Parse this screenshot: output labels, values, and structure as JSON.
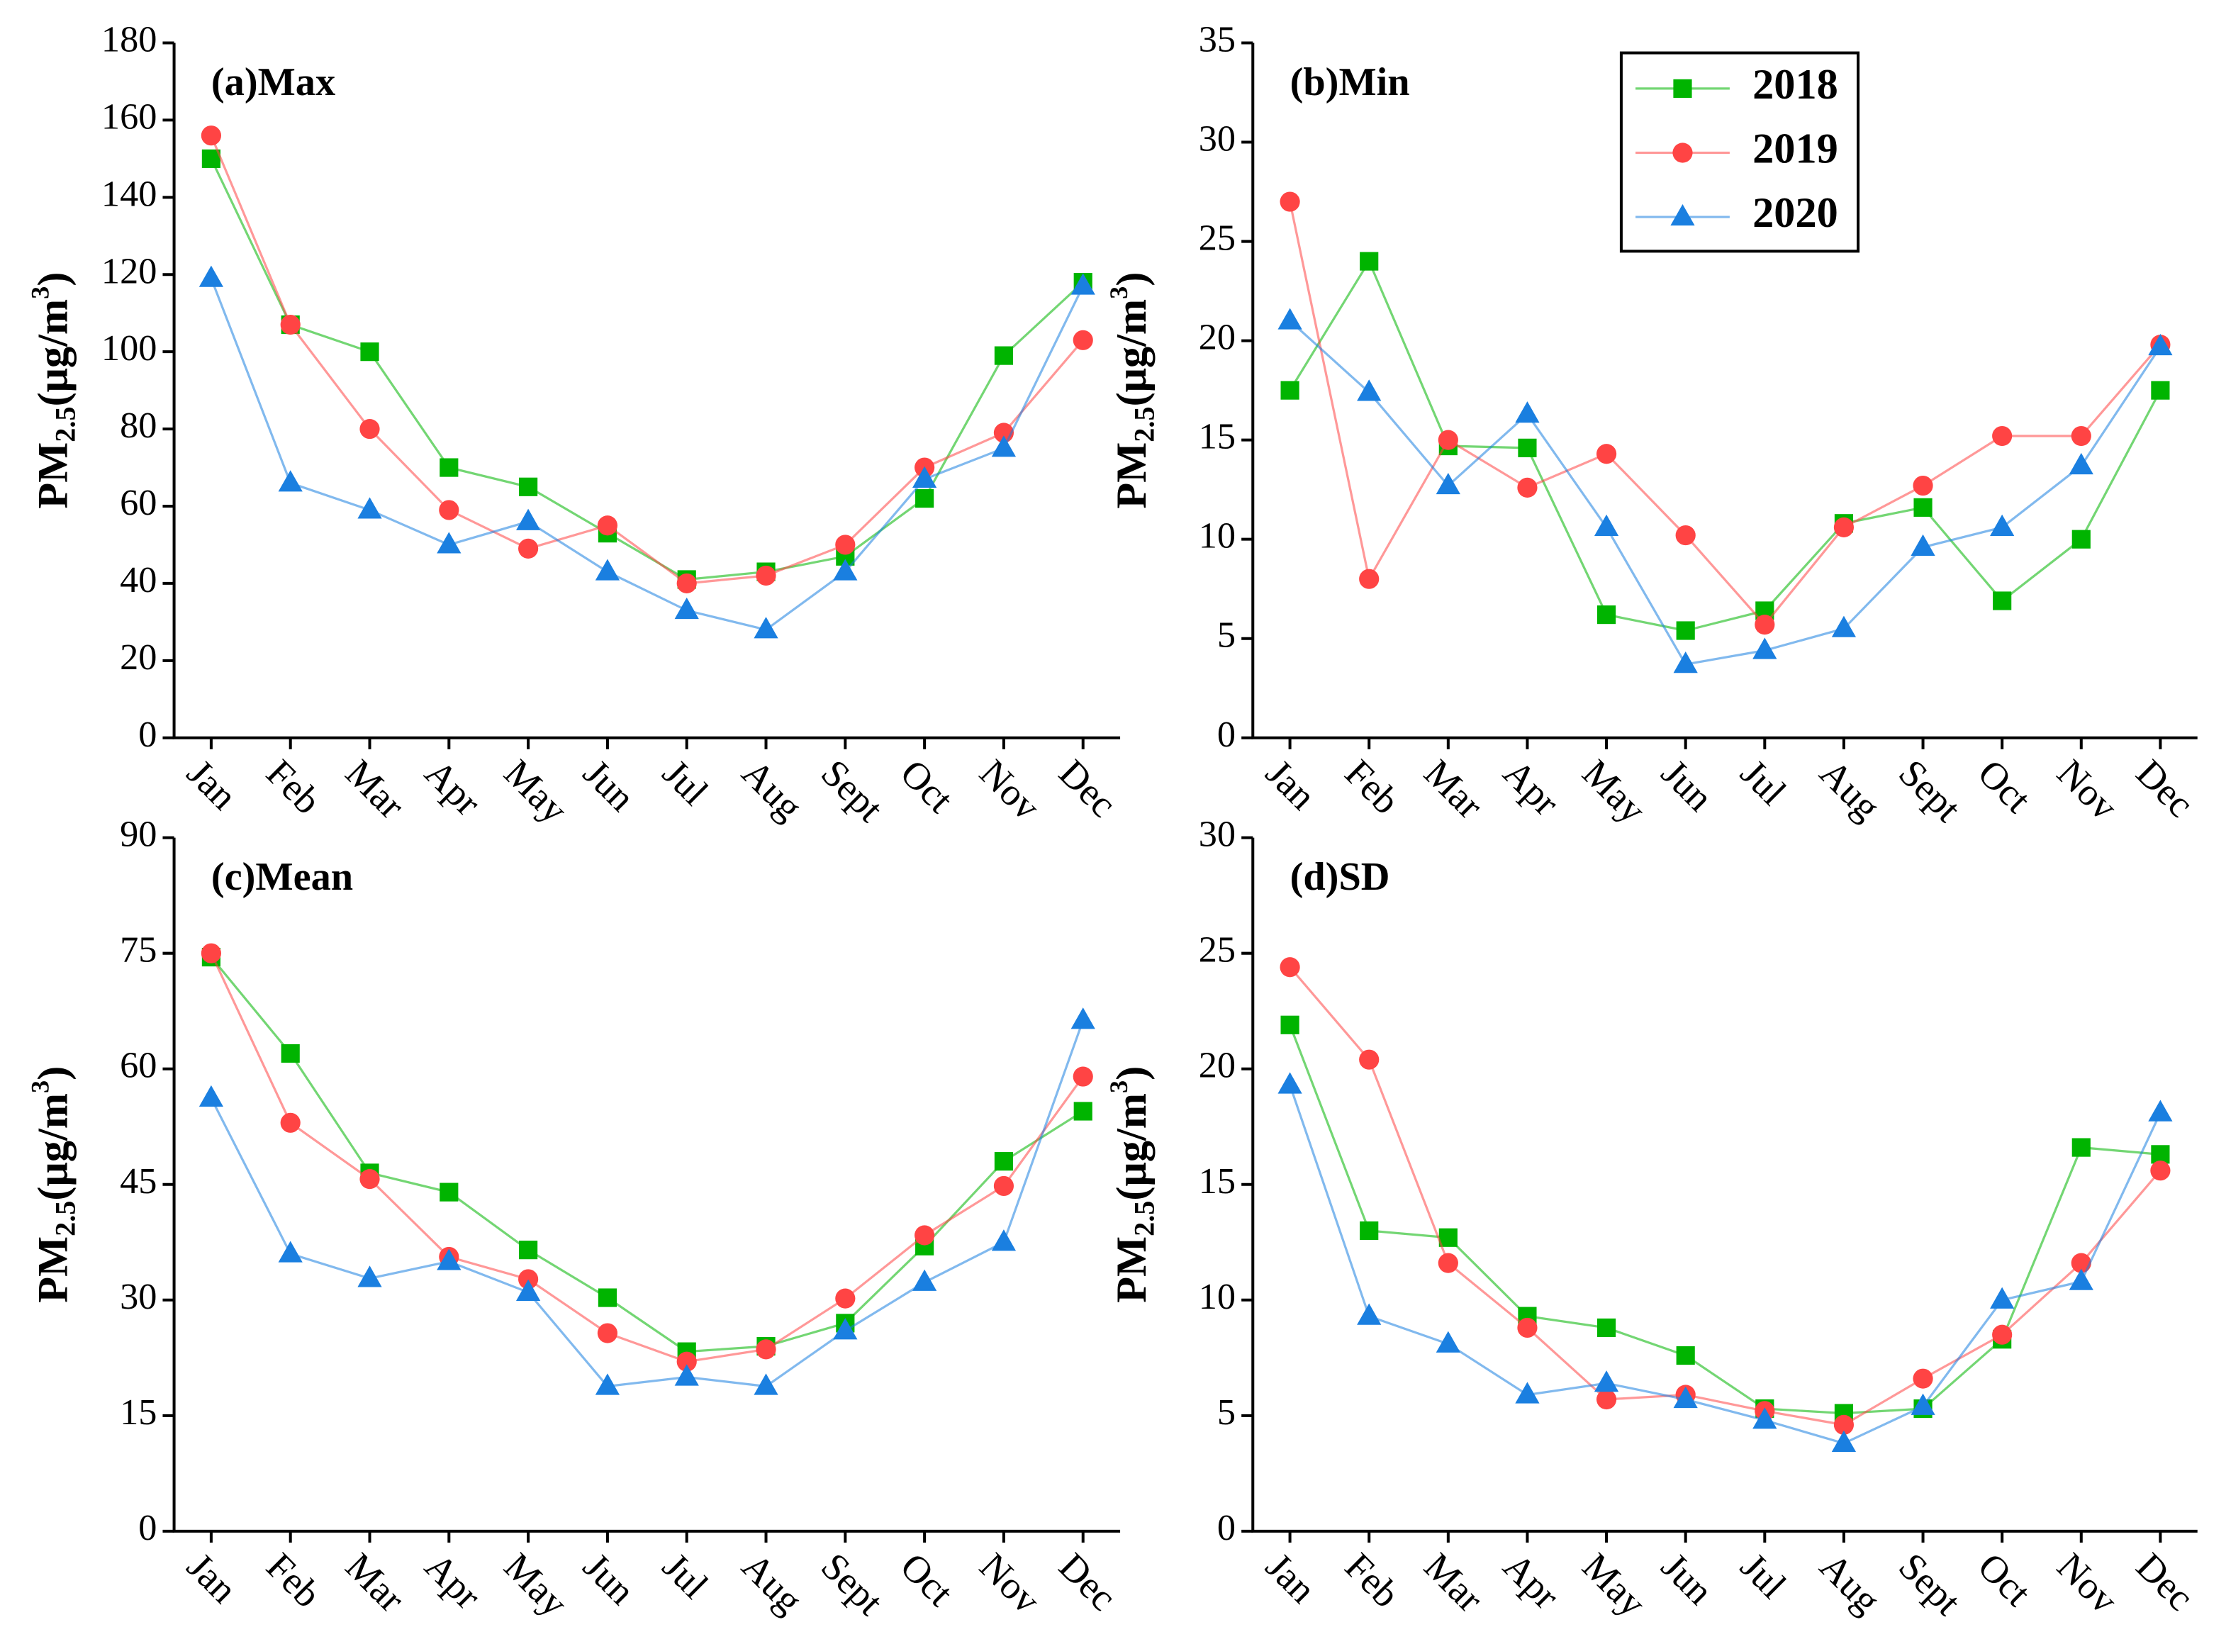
{
  "chart_data": [
    {
      "type": "line",
      "title": "(a)Max",
      "ylabel": [
        "PM",
        "2.5",
        "(μg/m",
        "3",
        ")"
      ],
      "categories": [
        "Jan",
        "Feb",
        "Mar",
        "Apr",
        "May",
        "Jun",
        "Jul",
        "Aug",
        "Sept",
        "Oct",
        "Nov",
        "Dec"
      ],
      "series": [
        {
          "name": "2018",
          "color": "#00b400",
          "marker": "square",
          "values": [
            150,
            107,
            100,
            70,
            65,
            53,
            41,
            43,
            47,
            62,
            99,
            118
          ]
        },
        {
          "name": "2019",
          "color": "#ff4444",
          "marker": "circle",
          "values": [
            156,
            107,
            80,
            59,
            49,
            55,
            40,
            42,
            50,
            70,
            79,
            103
          ]
        },
        {
          "name": "2020",
          "color": "#1a7fe0",
          "marker": "triangle",
          "values": [
            119,
            66,
            59,
            50,
            56,
            43,
            33,
            28,
            43,
            67,
            75,
            117
          ]
        }
      ],
      "ylim": [
        0,
        180
      ],
      "yticks": [
        0,
        20,
        40,
        60,
        80,
        100,
        120,
        140,
        160,
        180
      ]
    },
    {
      "type": "line",
      "title": "(b)Min",
      "ylabel": [
        "PM",
        "2.5",
        "(μg/m",
        "3",
        ")"
      ],
      "categories": [
        "Jan",
        "Feb",
        "Mar",
        "Apr",
        "May",
        "Jun",
        "Jul",
        "Aug",
        "Sept",
        "Oct",
        "Nov",
        "Dec"
      ],
      "series": [
        {
          "name": "2018",
          "color": "#00b400",
          "marker": "square",
          "values": [
            17.5,
            24,
            14.7,
            14.6,
            6.2,
            5.4,
            6.4,
            10.8,
            11.6,
            6.9,
            10,
            17.5
          ]
        },
        {
          "name": "2019",
          "color": "#ff4444",
          "marker": "circle",
          "values": [
            27,
            8,
            15,
            12.6,
            14.3,
            10.2,
            5.7,
            10.6,
            12.7,
            15.2,
            15.2,
            19.8
          ]
        },
        {
          "name": "2020",
          "color": "#1a7fe0",
          "marker": "triangle",
          "values": [
            21,
            17.4,
            12.7,
            16.3,
            10.6,
            3.7,
            4.4,
            5.5,
            9.6,
            10.6,
            13.7,
            19.7
          ]
        }
      ],
      "ylim": [
        0,
        35
      ],
      "yticks": [
        0,
        5,
        10,
        15,
        20,
        25,
        30,
        35
      ],
      "legend": "upper center"
    },
    {
      "type": "line",
      "title": "(c)Mean",
      "ylabel": [
        "PM",
        "2.5",
        "(μg/m",
        "3",
        ")"
      ],
      "categories": [
        "Jan",
        "Feb",
        "Mar",
        "Apr",
        "May",
        "Jun",
        "Jul",
        "Aug",
        "Sept",
        "Oct",
        "Nov",
        "Dec"
      ],
      "series": [
        {
          "name": "2018",
          "color": "#00b400",
          "marker": "square",
          "values": [
            74.5,
            62,
            46.5,
            44,
            36.5,
            30.3,
            23.3,
            24,
            27,
            37,
            48,
            54.5
          ]
        },
        {
          "name": "2019",
          "color": "#ff4444",
          "marker": "circle",
          "values": [
            75,
            53,
            45.7,
            35.6,
            32.7,
            25.7,
            22,
            23.6,
            30.2,
            38.4,
            44.8,
            59
          ]
        },
        {
          "name": "2020",
          "color": "#1a7fe0",
          "marker": "triangle",
          "values": [
            56.2,
            36,
            32.8,
            35,
            31,
            18.8,
            20,
            18.8,
            26,
            32.3,
            37.5,
            66.3
          ]
        }
      ],
      "ylim": [
        0,
        90
      ],
      "yticks": [
        0,
        15,
        30,
        45,
        60,
        75,
        90
      ]
    },
    {
      "type": "line",
      "title": "(d)SD",
      "ylabel": [
        "PM",
        "2.5",
        "(μg/m",
        "3",
        ")"
      ],
      "categories": [
        "Jan",
        "Feb",
        "Mar",
        "Apr",
        "May",
        "Jun",
        "Jul",
        "Aug",
        "Sept",
        "Oct",
        "Nov",
        "Dec"
      ],
      "series": [
        {
          "name": "2018",
          "color": "#00b400",
          "marker": "square",
          "values": [
            21.9,
            13,
            12.7,
            9.3,
            8.8,
            7.6,
            5.3,
            5.1,
            5.3,
            8.3,
            16.6,
            16.3
          ]
        },
        {
          "name": "2019",
          "color": "#ff4444",
          "marker": "circle",
          "values": [
            24.4,
            20.4,
            11.6,
            8.8,
            5.7,
            5.9,
            5.2,
            4.6,
            6.6,
            8.5,
            11.6,
            15.6
          ]
        },
        {
          "name": "2020",
          "color": "#1a7fe0",
          "marker": "triangle",
          "values": [
            19.3,
            9.3,
            8.1,
            5.9,
            6.4,
            5.7,
            4.8,
            3.8,
            5.4,
            10,
            10.8,
            18.1
          ]
        }
      ],
      "ylim": [
        0,
        30
      ],
      "yticks": [
        0,
        5,
        10,
        15,
        20,
        25,
        30
      ]
    }
  ]
}
